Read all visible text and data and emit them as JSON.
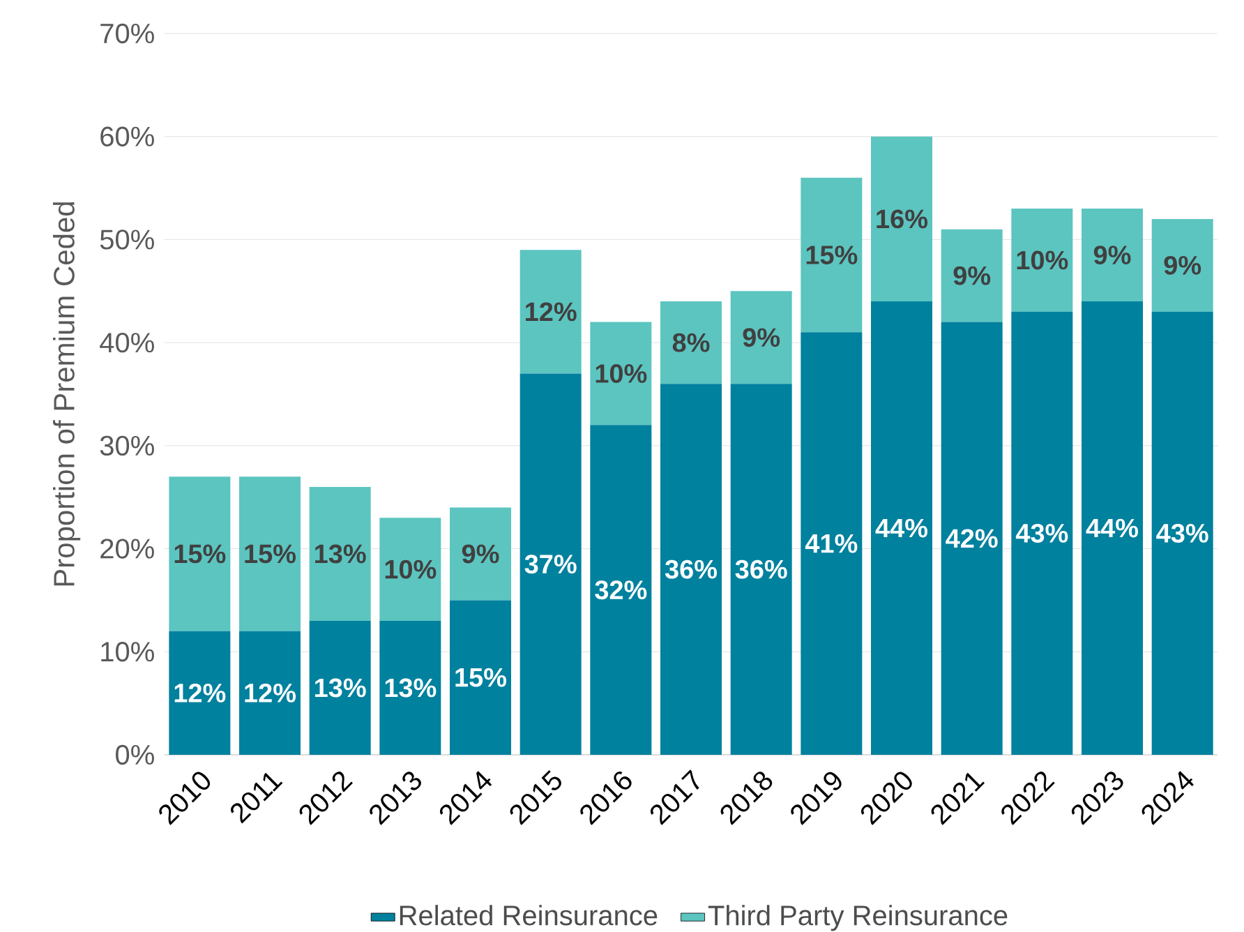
{
  "chart_data": {
    "type": "bar",
    "stacked": true,
    "ylabel": "Proportion of Premium Ceded",
    "categories": [
      "2010",
      "2011",
      "2012",
      "2013",
      "2014",
      "2015",
      "2016",
      "2017",
      "2018",
      "2019",
      "2020",
      "2021",
      "2022",
      "2023",
      "2024"
    ],
    "series": [
      {
        "name": "Related Reinsurance",
        "color": "#00819e",
        "values": [
          12,
          12,
          13,
          13,
          15,
          37,
          32,
          36,
          36,
          41,
          44,
          42,
          43,
          44,
          43
        ],
        "value_labels": [
          "12%",
          "12%",
          "13%",
          "13%",
          "15%",
          "37%",
          "32%",
          "36%",
          "36%",
          "41%",
          "44%",
          "42%",
          "43%",
          "44%",
          "43%"
        ]
      },
      {
        "name": "Third Party Reinsurance",
        "color": "#5cc5c0",
        "values": [
          15,
          15,
          13,
          10,
          9,
          12,
          10,
          8,
          9,
          15,
          16,
          9,
          10,
          9,
          9
        ],
        "value_labels": [
          "15%",
          "15%",
          "13%",
          "10%",
          "9%",
          "12%",
          "10%",
          "8%",
          "9%",
          "15%",
          "16%",
          "9%",
          "10%",
          "9%",
          "9%"
        ]
      }
    ],
    "ylim": [
      0,
      70
    ],
    "yticks": [
      {
        "value": 0,
        "label": "0%"
      },
      {
        "value": 10,
        "label": "10%"
      },
      {
        "value": 20,
        "label": "20%"
      },
      {
        "value": 30,
        "label": "30%"
      },
      {
        "value": 40,
        "label": "40%"
      },
      {
        "value": 50,
        "label": "50%"
      },
      {
        "value": 60,
        "label": "60%"
      },
      {
        "value": 70,
        "label": "70%"
      }
    ],
    "grid": "y",
    "legend": "bottom"
  }
}
